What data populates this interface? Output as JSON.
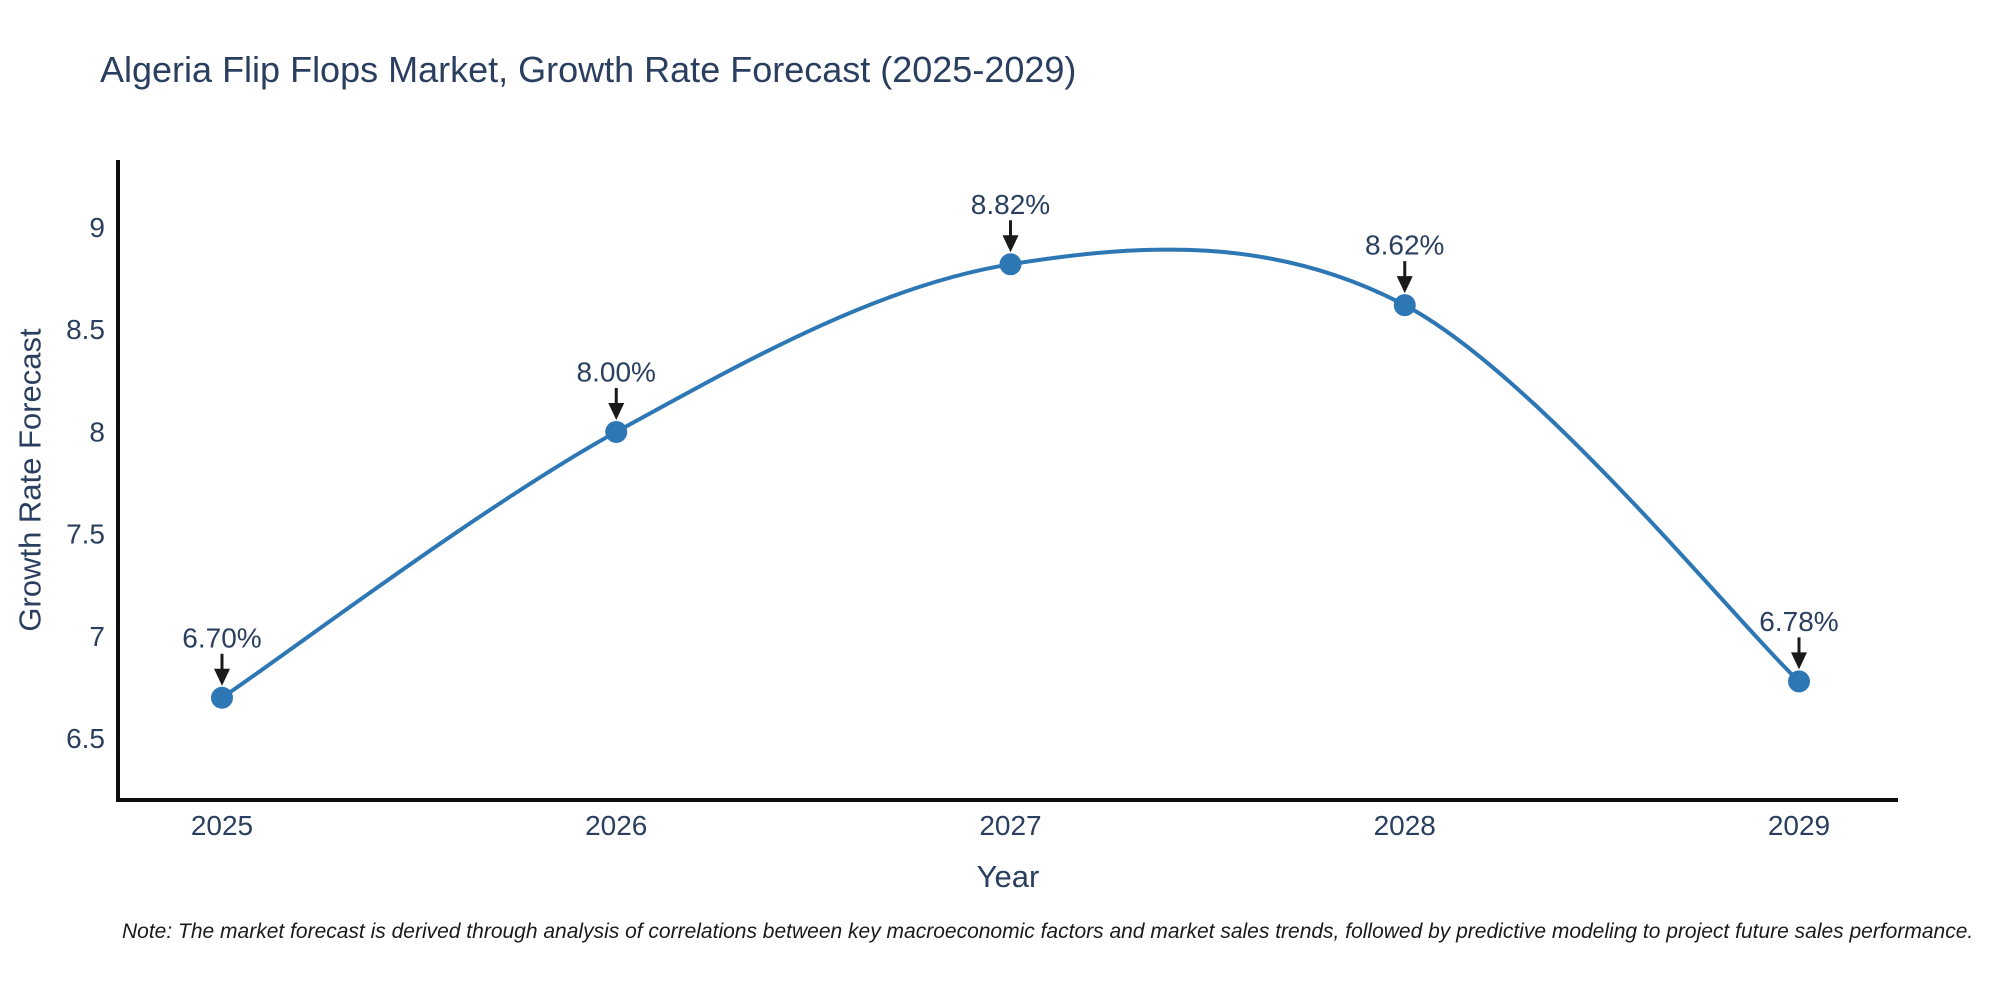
{
  "chart_data": {
    "type": "line",
    "title": "Algeria Flip Flops Market, Growth Rate Forecast (2025-2029)",
    "xlabel": "Year",
    "ylabel": "Growth Rate Forecast",
    "categories": [
      "2025",
      "2026",
      "2027",
      "2028",
      "2029"
    ],
    "values": [
      6.7,
      8.0,
      8.82,
      8.62,
      6.78
    ],
    "point_labels": [
      "6.70%",
      "8.00%",
      "8.82%",
      "8.62%",
      "6.78%"
    ],
    "y_ticks": [
      6.5,
      7,
      7.5,
      8,
      8.5,
      9
    ],
    "y_tick_labels": [
      "6.5",
      "7",
      "7.5",
      "8",
      "8.5",
      "9"
    ],
    "ylim": [
      6.2,
      9.33
    ],
    "grid": false,
    "legend": false,
    "line_shape": "spline",
    "annotations_have_arrows": true,
    "colors": {
      "line": "#2e77b5",
      "marker": "#2e77b5",
      "axis_line": "#0d0d0d",
      "text": "#2a3f5f",
      "arrow": "#1a1a1a"
    }
  },
  "note": {
    "text": "Note: The market forecast is derived through analysis of correlations between key macroeconomic factors and market sales trends, followed by predictive modeling to project future sales performance."
  }
}
